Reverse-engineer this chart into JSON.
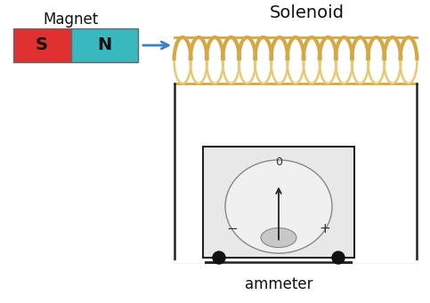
{
  "bg_color": "#ffffff",
  "magnet_s_color": "#e03030",
  "magnet_n_color": "#3ab8c0",
  "magnet_s_label": "S",
  "magnet_n_label": "N",
  "magnet_label": "Magnet",
  "solenoid_label": "Solenoid",
  "ammeter_label": "ammeter",
  "coil_color": "#d4a843",
  "coil_shadow_color": "#b08020",
  "arrow_color": "#3a7fc1",
  "wire_color": "#222222",
  "ammeter_box_color": "#e8e8e8",
  "ammeter_face_color": "#f0f0f0",
  "dot_color": "#111111"
}
